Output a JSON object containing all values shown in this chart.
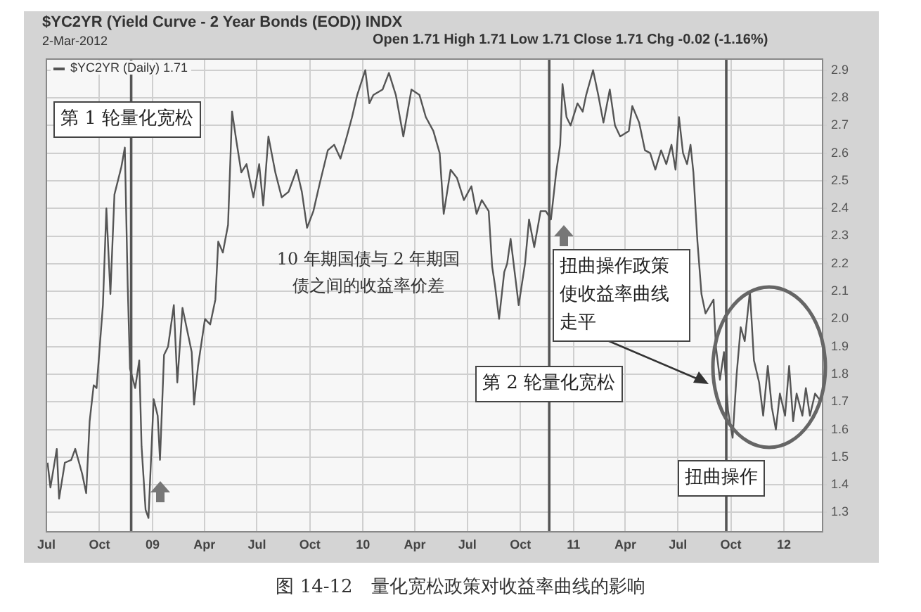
{
  "chart_data": {
    "type": "line",
    "title": "$YC2YR (Yield Curve - 2 Year Bonds (EOD)) INDX",
    "subtitle": "2-Mar-2012",
    "annotations": [
      "第 1 轮量化宽松",
      "10 年期国债与 2 年期国债之间的收益率价差",
      "扭曲操作政策使收益率曲线走平",
      "第 2 轮量化宽松",
      "扭曲操作",
      "Open 1.71 High 1.71 Low 1.71 Close 1.71 Chg -0.02 (-1.16%)",
      "图 14-12　量化宽松政策对收益率曲线的影响"
    ],
    "x": [
      "2008-07-03",
      "2008-07-08",
      "2008-07-19",
      "2008-07-23",
      "2008-08-02",
      "2008-08-13",
      "2008-08-20",
      "2008-09-01",
      "2008-09-08",
      "2008-09-14",
      "2008-09-21",
      "2008-09-26",
      "2008-10-07",
      "2008-10-13",
      "2008-10-20",
      "2008-10-27",
      "2008-11-08",
      "2008-11-14",
      "2008-11-19",
      "2008-11-23",
      "2008-12-02",
      "2008-12-09",
      "2008-12-13",
      "2008-12-20",
      "2008-12-25",
      "2009-01-03",
      "2009-01-10",
      "2009-01-14",
      "2009-01-21",
      "2009-01-28",
      "2009-02-07",
      "2009-02-13",
      "2009-02-22",
      "2009-03-03",
      "2009-03-10",
      "2009-03-14",
      "2009-03-21",
      "2009-04-02",
      "2009-04-11",
      "2009-04-20",
      "2009-04-25",
      "2009-05-03",
      "2009-05-12",
      "2009-05-19",
      "2009-05-26",
      "2009-06-04",
      "2009-06-13",
      "2009-06-25",
      "2009-07-05",
      "2009-07-12",
      "2009-07-21",
      "2009-08-02",
      "2009-08-13",
      "2009-08-25",
      "2009-09-08",
      "2009-09-17",
      "2009-09-26",
      "2009-10-07",
      "2009-10-18",
      "2009-11-01",
      "2009-11-12",
      "2009-11-23",
      "2009-12-04",
      "2009-12-13",
      "2009-12-22",
      "2010-01-05",
      "2010-01-12",
      "2010-01-19",
      "2010-02-04",
      "2010-02-15",
      "2010-02-27",
      "2010-03-12",
      "2010-03-26",
      "2010-04-09",
      "2010-04-20",
      "2010-05-03",
      "2010-05-14",
      "2010-05-21",
      "2010-06-02",
      "2010-06-13",
      "2010-06-25",
      "2010-07-08",
      "2010-07-17",
      "2010-07-26",
      "2010-08-07",
      "2010-08-13",
      "2010-08-18",
      "2010-08-25",
      "2010-09-03",
      "2010-09-08",
      "2010-09-14",
      "2010-09-21",
      "2010-09-28",
      "2010-10-09",
      "2010-10-16",
      "2010-10-25",
      "2010-11-05",
      "2010-11-14",
      "2010-11-23",
      "2010-12-02",
      "2010-12-09",
      "2010-12-13",
      "2010-12-20",
      "2010-12-27",
      "2011-01-08",
      "2011-01-17",
      "2011-01-23",
      "2011-02-04",
      "2011-02-13",
      "2011-02-22",
      "2011-03-05",
      "2011-03-14",
      "2011-03-23",
      "2011-04-07",
      "2011-04-13",
      "2011-04-25",
      "2011-05-05",
      "2011-05-14",
      "2011-05-23",
      "2011-06-02",
      "2011-06-11",
      "2011-06-20",
      "2011-06-27",
      "2011-07-03",
      "2011-07-10",
      "2011-07-17",
      "2011-07-23",
      "2011-07-28",
      "2011-08-04",
      "2011-08-11",
      "2011-08-18",
      "2011-09-01",
      "2011-09-05",
      "2011-09-12",
      "2011-09-19",
      "2011-09-26",
      "2011-10-04",
      "2011-10-11",
      "2011-10-18",
      "2011-10-25",
      "2011-11-03",
      "2011-11-10",
      "2011-11-19",
      "2011-11-26",
      "2011-12-04",
      "2011-12-11",
      "2011-12-18",
      "2011-12-25",
      "2012-01-03",
      "2012-01-10",
      "2012-01-17",
      "2012-01-23",
      "2012-02-02",
      "2012-02-08",
      "2012-02-15",
      "2012-02-24",
      "2012-03-02"
    ],
    "series": [
      {
        "name": "$YC2YR (Daily) 1.71",
        "color": "#555555",
        "values": [
          1.48,
          1.39,
          1.53,
          1.35,
          1.48,
          1.49,
          1.53,
          1.44,
          1.37,
          1.63,
          1.76,
          1.75,
          2.05,
          2.4,
          2.09,
          2.45,
          2.55,
          2.62,
          2.12,
          1.82,
          1.75,
          1.85,
          1.54,
          1.31,
          1.28,
          1.71,
          1.65,
          1.49,
          1.87,
          1.9,
          2.05,
          1.77,
          2.04,
          1.95,
          1.88,
          1.69,
          1.83,
          2.0,
          1.98,
          2.07,
          2.28,
          2.24,
          2.34,
          2.75,
          2.65,
          2.53,
          2.56,
          2.44,
          2.56,
          2.41,
          2.66,
          2.53,
          2.44,
          2.46,
          2.54,
          2.46,
          2.33,
          2.39,
          2.49,
          2.61,
          2.63,
          2.58,
          2.66,
          2.73,
          2.81,
          2.9,
          2.78,
          2.81,
          2.83,
          2.89,
          2.81,
          2.66,
          2.83,
          2.81,
          2.73,
          2.68,
          2.6,
          2.38,
          2.54,
          2.51,
          2.43,
          2.48,
          2.38,
          2.43,
          2.39,
          2.19,
          2.12,
          2.0,
          2.17,
          2.2,
          2.29,
          2.17,
          2.05,
          2.2,
          2.36,
          2.26,
          2.39,
          2.39,
          2.36,
          2.53,
          2.63,
          2.85,
          2.73,
          2.7,
          2.78,
          2.75,
          2.81,
          2.9,
          2.81,
          2.71,
          2.83,
          2.7,
          2.66,
          2.68,
          2.77,
          2.71,
          2.61,
          2.6,
          2.54,
          2.61,
          2.56,
          2.63,
          2.54,
          2.73,
          2.6,
          2.56,
          2.63,
          2.53,
          2.28,
          2.09,
          2.02,
          2.07,
          1.9,
          1.78,
          1.88,
          1.67,
          1.57,
          1.8,
          1.97,
          1.92,
          2.1,
          1.85,
          1.77,
          1.65,
          1.83,
          1.68,
          1.6,
          1.73,
          1.65,
          1.83,
          1.63,
          1.73,
          1.65,
          1.75,
          1.65,
          1.73,
          1.71
        ]
      }
    ],
    "xlim": [
      "2008-07-01",
      "2012-03-08"
    ],
    "xticks": [
      {
        "value": "2008-07-01",
        "label": "Jul"
      },
      {
        "value": "2008-10-01",
        "label": "Oct"
      },
      {
        "value": "2009-01-01",
        "label": "09"
      },
      {
        "value": "2009-04-01",
        "label": "Apr"
      },
      {
        "value": "2009-07-01",
        "label": "Jul"
      },
      {
        "value": "2009-10-01",
        "label": "Oct"
      },
      {
        "value": "2010-01-01",
        "label": "10"
      },
      {
        "value": "2010-04-01",
        "label": "Apr"
      },
      {
        "value": "2010-07-01",
        "label": "Jul"
      },
      {
        "value": "2010-10-01",
        "label": "Oct"
      },
      {
        "value": "2011-01-01",
        "label": "11"
      },
      {
        "value": "2011-04-01",
        "label": "Apr"
      },
      {
        "value": "2011-07-01",
        "label": "Jul"
      },
      {
        "value": "2011-10-01",
        "label": "Oct"
      },
      {
        "value": "2012-01-01",
        "label": "12"
      }
    ],
    "ylim": [
      1.23,
      2.94
    ],
    "yticks": [
      1.3,
      1.4,
      1.5,
      1.6,
      1.7,
      1.8,
      1.9,
      {
        "value": 2,
        "label": "2.0"
      },
      2.1,
      2.2,
      2.3,
      2.4,
      2.5,
      2.6,
      2.7,
      2.8,
      2.9
    ],
    "grid": true,
    "legend": "top left",
    "ref_lines": [
      {
        "axis": "x",
        "value": "2008-11-25",
        "color": "#555555"
      },
      {
        "axis": "x",
        "value": "2010-11-20",
        "color": "#555555"
      },
      {
        "axis": "x",
        "value": "2011-09-23",
        "color": "#555555"
      }
    ]
  }
}
